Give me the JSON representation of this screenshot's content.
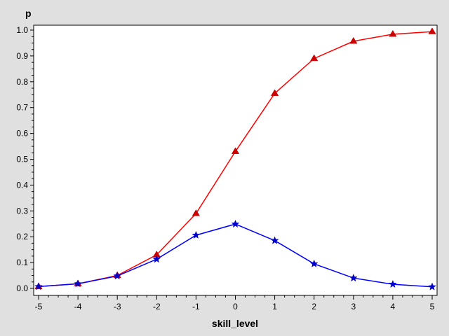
{
  "chart_data": {
    "type": "line",
    "title": "",
    "xlabel": "skill_level",
    "ylabel": "p",
    "xlim": [
      -5,
      5
    ],
    "ylim": [
      0,
      1.0
    ],
    "x_ticks": [
      -5,
      -4,
      -3,
      -2,
      -1,
      0,
      1,
      2,
      3,
      4,
      5
    ],
    "y_ticks": [
      0.0,
      0.1,
      0.2,
      0.3,
      0.4,
      0.5,
      0.6,
      0.7,
      0.8,
      0.9,
      1.0
    ],
    "x_tick_labels": [
      "-5",
      "-4",
      "-3",
      "-2",
      "-1",
      "0",
      "1",
      "2",
      "3",
      "4",
      "5"
    ],
    "y_tick_labels": [
      "0.0",
      "0.1",
      "0.2",
      "0.3",
      "0.4",
      "0.5",
      "0.6",
      "0.7",
      "0.8",
      "0.9",
      "1.0"
    ],
    "grid": false,
    "legend": "none",
    "background_color": "#e0e0e0",
    "plot_background_color": "#ffffff",
    "series": [
      {
        "marker": "triangle",
        "color": "#ff0000",
        "marker_color": "#cc0000",
        "x": [
          -5,
          -4,
          -3,
          -2,
          -1,
          0,
          1,
          2,
          3,
          4,
          5
        ],
        "y": [
          0.007,
          0.018,
          0.05,
          0.13,
          0.29,
          0.53,
          0.755,
          0.89,
          0.957,
          0.984,
          0.994
        ]
      },
      {
        "marker": "star",
        "color": "#0000ff",
        "marker_color": "#0000cc",
        "x": [
          -5,
          -4,
          -3,
          -2,
          -1,
          0,
          1,
          2,
          3,
          4,
          5
        ],
        "y": [
          0.007,
          0.018,
          0.048,
          0.113,
          0.206,
          0.249,
          0.185,
          0.095,
          0.04,
          0.016,
          0.006
        ]
      }
    ]
  }
}
